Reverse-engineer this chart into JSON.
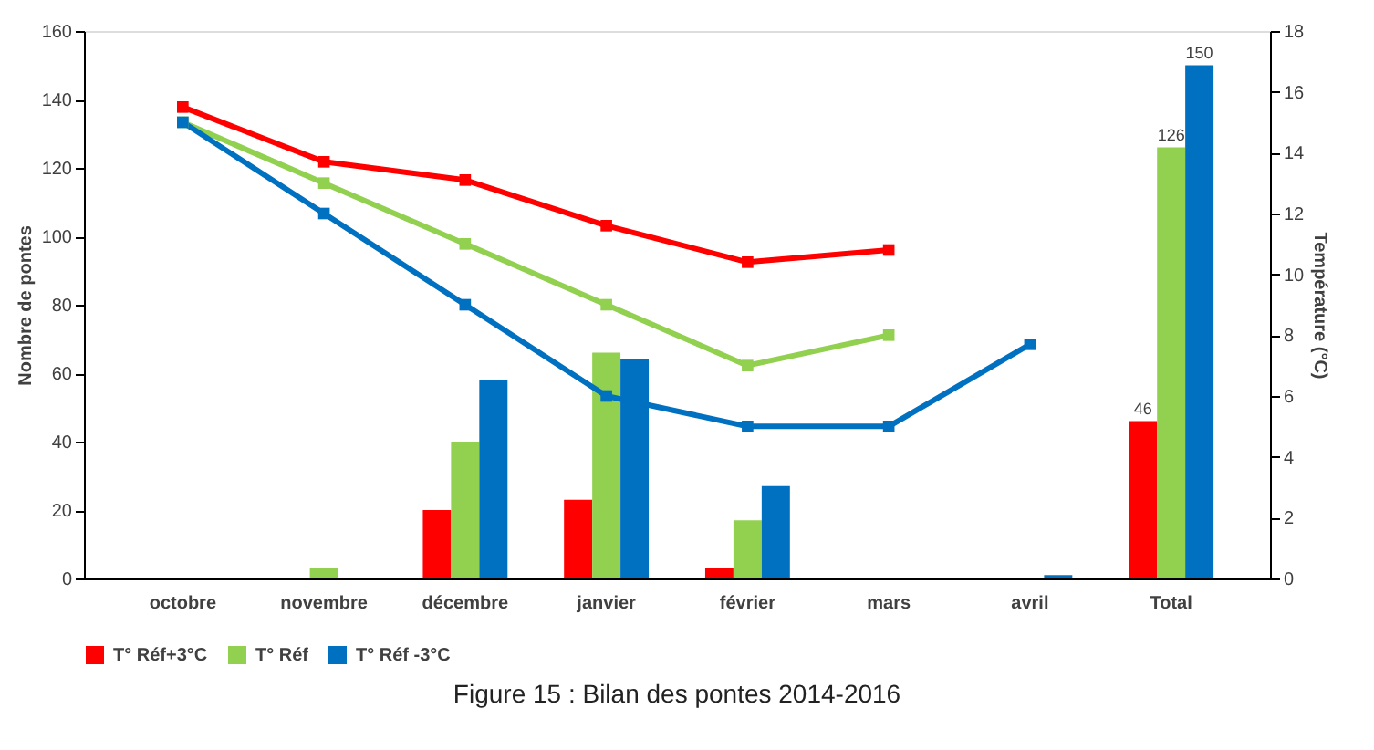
{
  "chart_data": {
    "type": "bar",
    "title": "Figure 15 : Bilan des pontes 2014-2016",
    "categories": [
      "octobre",
      "novembre",
      "décembre",
      "janvier",
      "février",
      "mars",
      "avril",
      "Total"
    ],
    "ylabel": "Nombre de pontes",
    "y2label": "Température (°C)",
    "ylim": [
      0,
      160
    ],
    "yticks": [
      0,
      20,
      40,
      60,
      80,
      100,
      120,
      140,
      160
    ],
    "y2lim": [
      0,
      18
    ],
    "y2ticks": [
      0,
      2,
      4,
      6,
      8,
      10,
      12,
      14,
      16,
      18
    ],
    "grid": false,
    "legend": "bottom",
    "marker": "square",
    "line_style": "solid",
    "series": [
      {
        "name": "T° Réf+3°C",
        "color": "#ff0000",
        "values": [
          null,
          null,
          20,
          23,
          3,
          null,
          null,
          46
        ],
        "value_labels": [
          null,
          null,
          null,
          null,
          null,
          null,
          null,
          "46"
        ]
      },
      {
        "name": "T° Réf",
        "color": "#92d050",
        "values": [
          null,
          3,
          40,
          66,
          17,
          null,
          null,
          126
        ],
        "value_labels": [
          null,
          null,
          null,
          null,
          null,
          null,
          null,
          "126"
        ]
      },
      {
        "name": "T° Réf -3°C",
        "color": "#0070c0",
        "values": [
          null,
          null,
          58,
          64,
          27,
          null,
          1,
          150
        ],
        "value_labels": [
          null,
          null,
          null,
          null,
          null,
          null,
          null,
          "150"
        ]
      },
      {
        "type": "line",
        "axis": "y2",
        "color": "#ff0000",
        "values": [
          15.5,
          13.7,
          13.1,
          11.6,
          10.4,
          10.8,
          null,
          null
        ]
      },
      {
        "type": "line",
        "axis": "y2",
        "color": "#92d050",
        "values": [
          15.0,
          13.0,
          11.0,
          9.0,
          7.0,
          8.0,
          null,
          null
        ]
      },
      {
        "type": "line",
        "axis": "y2",
        "color": "#0070c0",
        "values": [
          15.0,
          12.0,
          9.0,
          6.0,
          5.0,
          5.0,
          7.7,
          null
        ]
      }
    ]
  }
}
